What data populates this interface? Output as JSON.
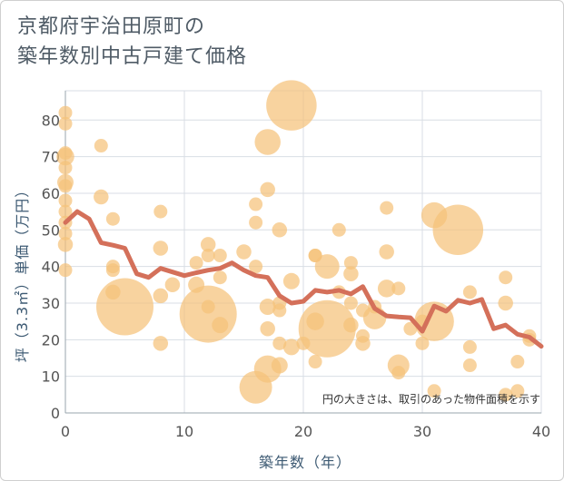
{
  "title": {
    "line1": "京都府宇治田原町の",
    "line2": "築年数別中古戸建て価格"
  },
  "chart_data": {
    "type": "scatter",
    "xlabel": "築年数（年）",
    "ylabel": "坪（3.3㎡）単価（万円）",
    "annotation": "円の大きさは、取引のあった物件面積を示す",
    "xlim": [
      0,
      40
    ],
    "ylim": [
      0,
      88
    ],
    "xticks": [
      0,
      10,
      20,
      30,
      40
    ],
    "yticks": [
      0,
      10,
      20,
      30,
      40,
      50,
      60,
      70,
      80
    ],
    "grid": true,
    "colors": {
      "bubble": "#f5c27a",
      "line": "#d4705a",
      "grid": "#d8dee4"
    },
    "bubbles": [
      {
        "x": 0,
        "y": 82,
        "s": 1
      },
      {
        "x": 0,
        "y": 79,
        "s": 1
      },
      {
        "x": 0,
        "y": 71,
        "s": 1
      },
      {
        "x": 0,
        "y": 70,
        "s": 1.3
      },
      {
        "x": 0,
        "y": 67,
        "s": 1
      },
      {
        "x": 0,
        "y": 63,
        "s": 1.2
      },
      {
        "x": 0,
        "y": 62,
        "s": 1
      },
      {
        "x": 0,
        "y": 58,
        "s": 1
      },
      {
        "x": 0,
        "y": 55,
        "s": 1
      },
      {
        "x": 0,
        "y": 52,
        "s": 1
      },
      {
        "x": 0,
        "y": 49,
        "s": 1
      },
      {
        "x": 0,
        "y": 46,
        "s": 1.1
      },
      {
        "x": 0,
        "y": 39,
        "s": 1
      },
      {
        "x": 3,
        "y": 73,
        "s": 1
      },
      {
        "x": 3,
        "y": 59,
        "s": 1.1
      },
      {
        "x": 4,
        "y": 53,
        "s": 1
      },
      {
        "x": 4,
        "y": 40,
        "s": 1
      },
      {
        "x": 4,
        "y": 39,
        "s": 1
      },
      {
        "x": 4,
        "y": 33,
        "s": 1.1
      },
      {
        "x": 5,
        "y": 29,
        "s": 4.2
      },
      {
        "x": 8,
        "y": 55,
        "s": 1
      },
      {
        "x": 8,
        "y": 45,
        "s": 1.1
      },
      {
        "x": 8,
        "y": 32,
        "s": 1.1
      },
      {
        "x": 8,
        "y": 19,
        "s": 1.1
      },
      {
        "x": 9,
        "y": 35,
        "s": 1.1
      },
      {
        "x": 11,
        "y": 41,
        "s": 1
      },
      {
        "x": 11,
        "y": 35,
        "s": 1.2
      },
      {
        "x": 12,
        "y": 46,
        "s": 1.1
      },
      {
        "x": 12,
        "y": 43,
        "s": 1
      },
      {
        "x": 12,
        "y": 27,
        "s": 4.2
      },
      {
        "x": 12,
        "y": 29,
        "s": 1
      },
      {
        "x": 13,
        "y": 43,
        "s": 1
      },
      {
        "x": 13,
        "y": 37,
        "s": 1
      },
      {
        "x": 13,
        "y": 24,
        "s": 1.2
      },
      {
        "x": 15,
        "y": 44,
        "s": 1.1
      },
      {
        "x": 16,
        "y": 57,
        "s": 1
      },
      {
        "x": 16,
        "y": 52,
        "s": 1
      },
      {
        "x": 16,
        "y": 40,
        "s": 1
      },
      {
        "x": 16,
        "y": 7,
        "s": 2.4
      },
      {
        "x": 17,
        "y": 74,
        "s": 1.9
      },
      {
        "x": 17,
        "y": 61,
        "s": 1.1
      },
      {
        "x": 17,
        "y": 29,
        "s": 1.2
      },
      {
        "x": 17,
        "y": 23,
        "s": 1.1
      },
      {
        "x": 17,
        "y": 12,
        "s": 2.0
      },
      {
        "x": 18,
        "y": 50,
        "s": 1.1
      },
      {
        "x": 18,
        "y": 30,
        "s": 1
      },
      {
        "x": 18,
        "y": 28,
        "s": 1
      },
      {
        "x": 18,
        "y": 19,
        "s": 1
      },
      {
        "x": 18,
        "y": 13,
        "s": 1.2
      },
      {
        "x": 19,
        "y": 84,
        "s": 3.7
      },
      {
        "x": 19,
        "y": 36,
        "s": 1.2
      },
      {
        "x": 19,
        "y": 18,
        "s": 1.2
      },
      {
        "x": 20,
        "y": 19,
        "s": 1
      },
      {
        "x": 21,
        "y": 43,
        "s": 1
      },
      {
        "x": 21,
        "y": 43,
        "s": 1
      },
      {
        "x": 21,
        "y": 25,
        "s": 1.3
      },
      {
        "x": 21,
        "y": 14,
        "s": 1
      },
      {
        "x": 22,
        "y": 40,
        "s": 1.8
      },
      {
        "x": 22,
        "y": 23,
        "s": 4.2
      },
      {
        "x": 23,
        "y": 50,
        "s": 1
      },
      {
        "x": 23,
        "y": 33,
        "s": 1
      },
      {
        "x": 24,
        "y": 41,
        "s": 1
      },
      {
        "x": 24,
        "y": 38,
        "s": 1.1
      },
      {
        "x": 24,
        "y": 30,
        "s": 1
      },
      {
        "x": 24,
        "y": 24,
        "s": 1.1
      },
      {
        "x": 25,
        "y": 28,
        "s": 1
      },
      {
        "x": 25,
        "y": 21,
        "s": 1
      },
      {
        "x": 25,
        "y": 19,
        "s": 1.1
      },
      {
        "x": 26,
        "y": 29,
        "s": 1
      },
      {
        "x": 26,
        "y": 26,
        "s": 1.7
      },
      {
        "x": 27,
        "y": 56,
        "s": 1
      },
      {
        "x": 27,
        "y": 44,
        "s": 1.1
      },
      {
        "x": 27,
        "y": 34,
        "s": 1.3
      },
      {
        "x": 28,
        "y": 34,
        "s": 1
      },
      {
        "x": 28,
        "y": 13,
        "s": 1.6
      },
      {
        "x": 28,
        "y": 11,
        "s": 1
      },
      {
        "x": 29,
        "y": 23,
        "s": 1
      },
      {
        "x": 30,
        "y": 25,
        "s": 1
      },
      {
        "x": 30,
        "y": 19,
        "s": 1
      },
      {
        "x": 31,
        "y": 54,
        "s": 1.9
      },
      {
        "x": 31,
        "y": 25,
        "s": 2.9
      },
      {
        "x": 31,
        "y": 6,
        "s": 1
      },
      {
        "x": 33,
        "y": 50,
        "s": 3.7
      },
      {
        "x": 34,
        "y": 33,
        "s": 1
      },
      {
        "x": 34,
        "y": 18,
        "s": 1
      },
      {
        "x": 34,
        "y": 13,
        "s": 1
      },
      {
        "x": 37,
        "y": 37,
        "s": 1
      },
      {
        "x": 37,
        "y": 30,
        "s": 1.1
      },
      {
        "x": 37,
        "y": 5,
        "s": 1
      },
      {
        "x": 38,
        "y": 14,
        "s": 1
      },
      {
        "x": 38,
        "y": 6,
        "s": 1
      },
      {
        "x": 39,
        "y": 21,
        "s": 1
      },
      {
        "x": 39,
        "y": 20,
        "s": 1
      }
    ],
    "trend": {
      "x": [
        0,
        1,
        2,
        3,
        4,
        5,
        6,
        7,
        8,
        9,
        10,
        11,
        12,
        13,
        14,
        15,
        16,
        17,
        18,
        19,
        20,
        21,
        22,
        23,
        24,
        25,
        26,
        27,
        28,
        29,
        30,
        31,
        32,
        33,
        34,
        35,
        36,
        37,
        38,
        39,
        40
      ],
      "y": [
        52,
        55,
        53,
        46.5,
        45.8,
        45,
        38,
        37,
        39.5,
        38.5,
        37.5,
        38.3,
        39,
        39.5,
        41,
        39,
        37.5,
        37,
        32,
        30,
        30.5,
        33.5,
        33,
        33.5,
        32.5,
        34.5,
        28.5,
        26.5,
        26.2,
        26,
        22.3,
        29.2,
        27.8,
        30.8,
        30,
        31,
        23,
        24,
        21.5,
        20.7,
        18.2
      ]
    }
  }
}
